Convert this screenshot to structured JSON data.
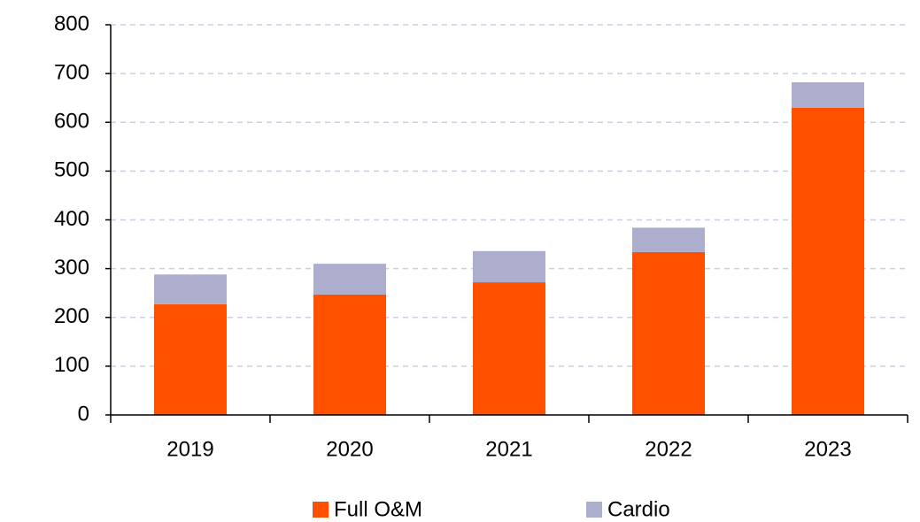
{
  "chart_data": {
    "type": "stacked_bar",
    "categories": [
      "2019",
      "2020",
      "2021",
      "2022",
      "2023"
    ],
    "series": [
      {
        "name": "Full O&M",
        "color": "#ff5000",
        "values": [
          227,
          247,
          272,
          334,
          630
        ]
      },
      {
        "name": "Cardio",
        "color": "#adadcd",
        "values": [
          61,
          63,
          64,
          50,
          52
        ]
      }
    ],
    "ylim": [
      0,
      800
    ],
    "yticks": [
      0,
      100,
      200,
      300,
      400,
      500,
      600,
      700,
      800
    ],
    "grid": true,
    "legend": "bottom"
  }
}
